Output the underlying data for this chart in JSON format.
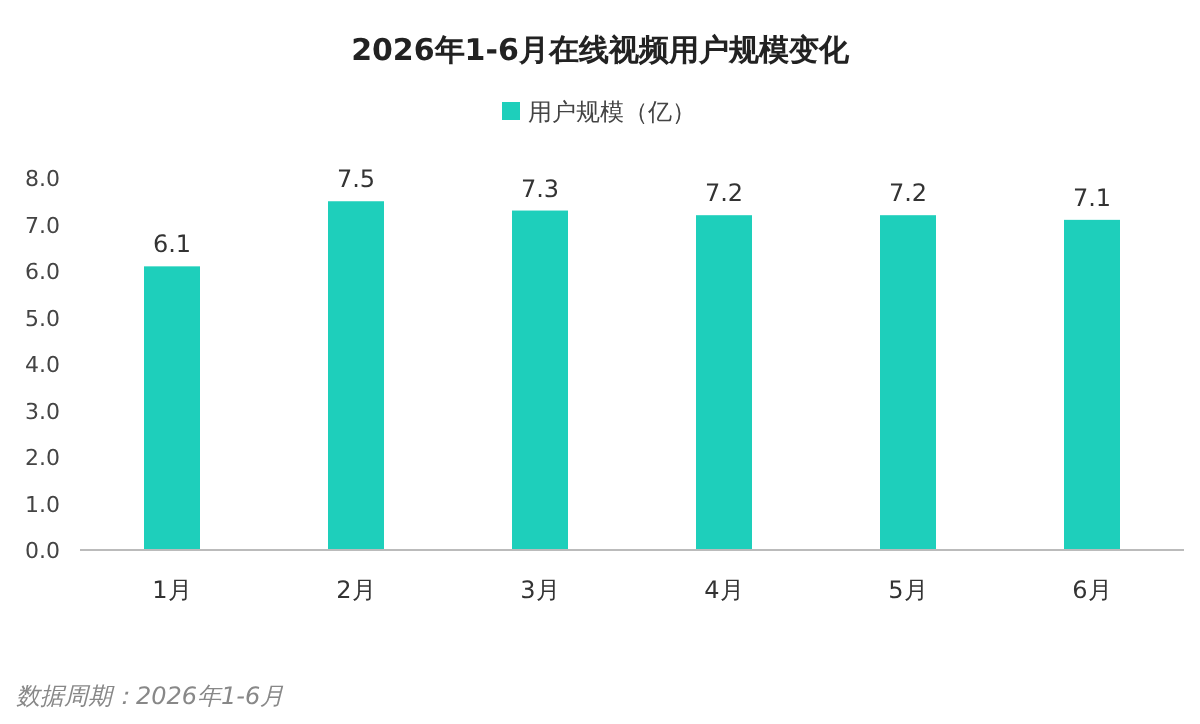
{
  "chart_data": {
    "type": "bar",
    "title": "2026年1-6月在线视频用户规模变化",
    "categories": [
      "1月",
      "2月",
      "3月",
      "4月",
      "5月",
      "6月"
    ],
    "series": [
      {
        "name": "用户规模（亿）",
        "color": "#1ecfbb",
        "values": [
          6.1,
          7.5,
          7.3,
          7.2,
          7.2,
          7.1
        ]
      }
    ],
    "ylim": [
      0,
      8
    ],
    "yticks": [
      {
        "value": 0,
        "label": "0.0"
      },
      {
        "value": 1,
        "label": "1.0"
      },
      {
        "value": 2,
        "label": "2.0"
      },
      {
        "value": 3,
        "label": "3.0"
      },
      {
        "value": 4,
        "label": "4.0"
      },
      {
        "value": 5,
        "label": "5.0"
      },
      {
        "value": 6,
        "label": "6.0"
      },
      {
        "value": 7,
        "label": "7.0"
      },
      {
        "value": 8,
        "label": "8.0"
      }
    ],
    "data_labels": true,
    "legend": "top",
    "grid": false,
    "annotations": [
      "数据周期：2026年1-6月"
    ]
  }
}
